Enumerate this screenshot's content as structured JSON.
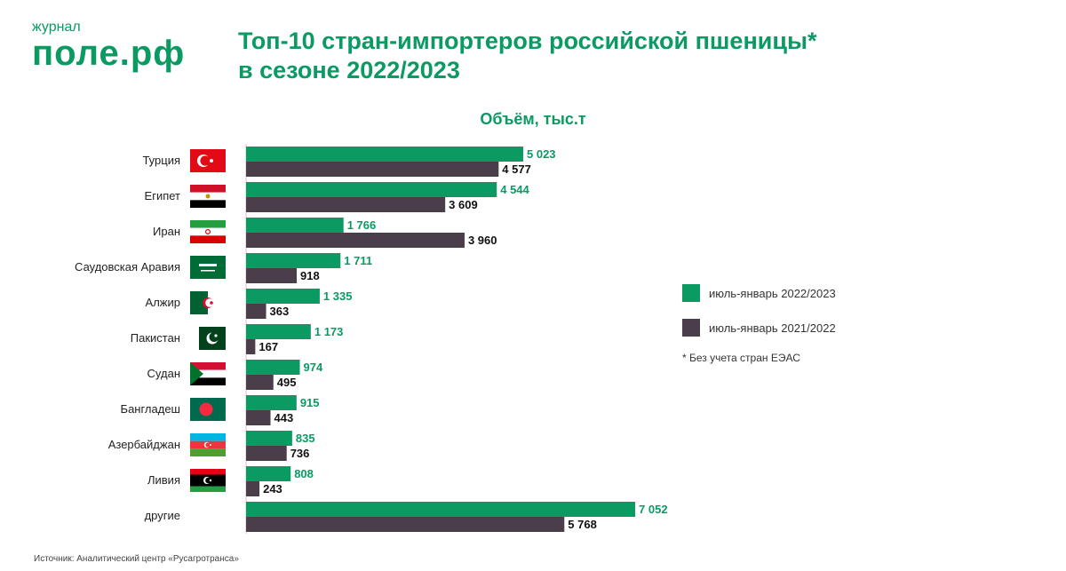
{
  "logo": {
    "small": "журнал",
    "main": "поле.рф"
  },
  "title_line1": "Топ-10 стран-импортеров российской пшеницы*",
  "title_line2": "в сезоне 2022/2023",
  "colors": {
    "current": "#0a9a62",
    "previous": "#4a3e4b",
    "accent_text": "#0a9a62"
  },
  "chart_data": {
    "type": "bar",
    "orientation": "horizontal",
    "title": "Объём, тыс.т",
    "categories": [
      "Турция",
      "Египет",
      "Иран",
      "Саудовская Аравия",
      "Алжир",
      "Пакистан",
      "Судан",
      "Бангладеш",
      "Азербайджан",
      "Ливия",
      "другие"
    ],
    "series": [
      {
        "name": "июль-январь 2022/2023",
        "values": [
          5023,
          4544,
          1766,
          1711,
          1335,
          1173,
          974,
          915,
          835,
          808,
          7052
        ]
      },
      {
        "name": "июль-январь 2021/2022",
        "values": [
          4577,
          3609,
          3960,
          918,
          363,
          167,
          495,
          443,
          736,
          243,
          5768
        ]
      }
    ],
    "value_labels": [
      [
        "5 023",
        "4 544",
        "1 766",
        "1 711",
        "1 335",
        "1 173",
        "974",
        "915",
        "835",
        "808",
        "7 052"
      ],
      [
        "4 577",
        "3 609",
        "3 960",
        "918",
        "363",
        "167",
        "495",
        "443",
        "736",
        "243",
        "5 768"
      ]
    ],
    "flags": [
      "turkey-flag",
      "egypt-flag",
      "iran-flag",
      "saudi-arabia-flag",
      "algeria-flag",
      "pakistan-flag",
      "sudan-flag",
      "bangladesh-flag",
      "azerbaijan-flag",
      "libya-flag",
      ""
    ],
    "legend_position": "right",
    "grid": false
  },
  "footnote": "* Без учета стран ЕЭАС",
  "source": "Источник: Аналитический центр «Русагротранса»"
}
